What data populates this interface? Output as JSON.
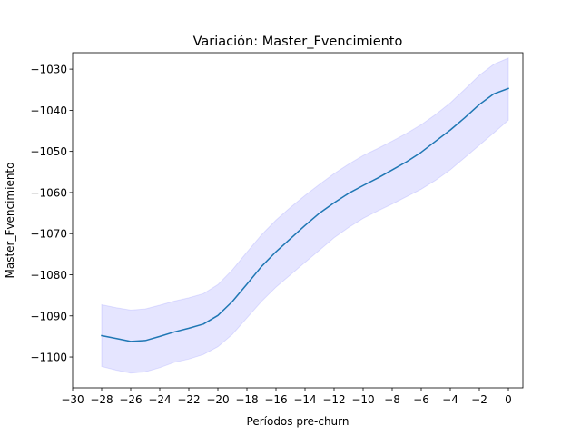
{
  "chart_data": {
    "type": "line",
    "title": "Variación: Master_Fvencimiento",
    "xlabel": "Períodos pre-churn",
    "ylabel": "Master_Fvencimiento",
    "xlim": [
      -30,
      1
    ],
    "ylim": [
      -1107.5,
      -1026
    ],
    "xticks": [
      -30,
      -28,
      -26,
      -24,
      -22,
      -20,
      -18,
      -16,
      -14,
      -12,
      -10,
      -8,
      -6,
      -4,
      -2,
      0
    ],
    "xtick_labels": [
      "−30",
      "−28",
      "−26",
      "−24",
      "−22",
      "−20",
      "−18",
      "−16",
      "−14",
      "−12",
      "−10",
      "−8",
      "−6",
      "−4",
      "−2",
      "0"
    ],
    "yticks": [
      -1100,
      -1090,
      -1080,
      -1070,
      -1060,
      -1050,
      -1040,
      -1030
    ],
    "ytick_labels": [
      "−1100",
      "−1090",
      "−1080",
      "−1070",
      "−1060",
      "−1050",
      "−1040",
      "−1030"
    ],
    "grid": false,
    "legend": "none",
    "line_color": "#1f77b4",
    "band_color": "#0000ff",
    "series": [
      {
        "x": [
          -28,
          -27,
          -26,
          -25,
          -24,
          -23,
          -22,
          -21,
          -20,
          -19,
          -18,
          -17,
          -16,
          -15,
          -14,
          -13,
          -12,
          -11,
          -10,
          -9,
          -8,
          -7,
          -6,
          -5,
          -4,
          -3,
          -2,
          -1,
          0
        ],
        "y": [
          -1094.8,
          -1095.5,
          -1096.2,
          -1096.0,
          -1095.0,
          -1093.9,
          -1093.0,
          -1092.0,
          -1089.9,
          -1086.5,
          -1082.3,
          -1078.0,
          -1074.4,
          -1071.2,
          -1068.0,
          -1065.0,
          -1062.5,
          -1060.2,
          -1058.3,
          -1056.5,
          -1054.5,
          -1052.5,
          -1050.2,
          -1047.5,
          -1044.8,
          -1041.8,
          -1038.6,
          -1036.0,
          -1034.7
        ],
        "lower": [
          -1102.3,
          -1103.2,
          -1103.9,
          -1103.6,
          -1102.6,
          -1101.3,
          -1100.5,
          -1099.4,
          -1097.5,
          -1094.5,
          -1090.5,
          -1086.5,
          -1083.0,
          -1080.0,
          -1077.0,
          -1074.0,
          -1071.0,
          -1068.5,
          -1066.3,
          -1064.5,
          -1062.8,
          -1061.0,
          -1059.2,
          -1057.0,
          -1054.5,
          -1051.5,
          -1048.5,
          -1045.5,
          -1042.4
        ],
        "upper": [
          -1087.3,
          -1088.0,
          -1088.6,
          -1088.3,
          -1087.4,
          -1086.4,
          -1085.6,
          -1084.6,
          -1082.4,
          -1078.8,
          -1074.5,
          -1070.3,
          -1066.7,
          -1063.6,
          -1060.7,
          -1058.0,
          -1055.4,
          -1053.1,
          -1051.0,
          -1049.3,
          -1047.5,
          -1045.6,
          -1043.5,
          -1041.0,
          -1038.2,
          -1034.9,
          -1031.5,
          -1028.8,
          -1027.3
        ]
      }
    ]
  }
}
